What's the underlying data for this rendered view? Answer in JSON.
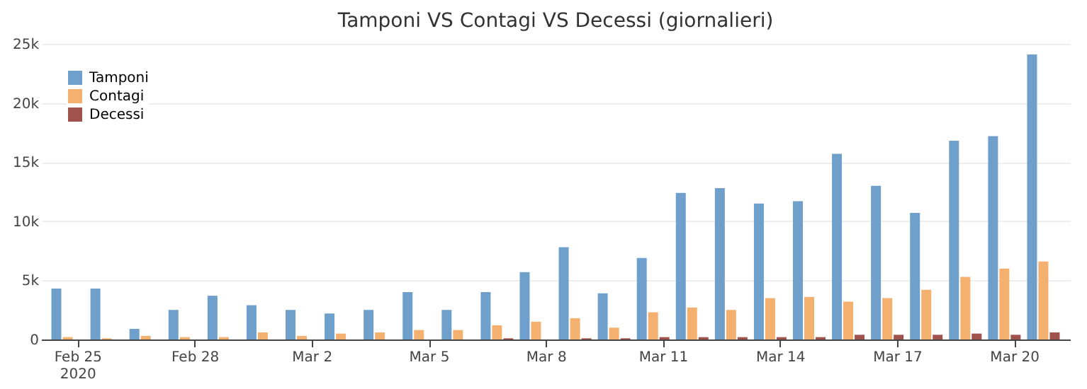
{
  "chart_data": {
    "type": "bar",
    "title": "Tamponi VS Contagi VS Decessi (giornalieri)",
    "x": [
      "2020-02-24T18:00",
      "2020-02-25T18:00",
      "2020-02-26T18:00",
      "2020-02-27T18:00",
      "2020-02-28T18:00",
      "2020-02-29T18:00",
      "2020-03-01T18:00",
      "2020-03-02T18:00",
      "2020-03-03T18:00",
      "2020-03-04T18:00",
      "2020-03-05T18:00",
      "2020-03-06T18:00",
      "2020-03-07T18:00",
      "2020-03-08T18:00",
      "2020-03-09T18:00",
      "2020-03-10T18:00",
      "2020-03-11T18:00",
      "2020-03-12T18:00",
      "2020-03-13T18:00",
      "2020-03-14T18:00",
      "2020-03-15T18:00",
      "2020-03-16T18:00",
      "2020-03-17T18:00",
      "2020-03-18T18:00",
      "2020-03-19T18:00",
      "2020-03-20T18:00"
    ],
    "series": [
      {
        "name": "Tamponi",
        "color": "#6f9fcb",
        "values": [
          4300,
          4300,
          900,
          2500,
          3700,
          2900,
          2500,
          2200,
          2500,
          4000,
          2500,
          4000,
          5700,
          7800,
          3900,
          6900,
          12400,
          12800,
          11500,
          11700,
          15700,
          13000,
          10700,
          16800,
          17200,
          24100
        ]
      },
      {
        "name": "Contagi",
        "color": "#f3b06f",
        "values": [
          200,
          100,
          300,
          200,
          200,
          600,
          300,
          500,
          600,
          800,
          800,
          1200,
          1500,
          1800,
          1000,
          2300,
          2700,
          2500,
          3500,
          3600,
          3200,
          3500,
          4200,
          5300,
          6000,
          6600
        ]
      },
      {
        "name": "Decessi",
        "color": "#a0524c",
        "values": [
          0,
          0,
          0,
          0,
          0,
          0,
          0,
          0,
          0,
          0,
          0,
          100,
          0,
          100,
          100,
          200,
          200,
          200,
          200,
          200,
          400,
          400,
          400,
          500,
          400,
          600
        ]
      }
    ],
    "xlim": [
      "2020-02-24T06:00",
      "2020-03-21T06:00"
    ],
    "xticks": [
      {
        "value": "2020-02-25",
        "label": "Feb 25\n2020"
      },
      {
        "value": "2020-02-28",
        "label": "Feb 28"
      },
      {
        "value": "2020-03-02",
        "label": "Mar 2"
      },
      {
        "value": "2020-03-05",
        "label": "Mar 5"
      },
      {
        "value": "2020-03-08",
        "label": "Mar 8"
      },
      {
        "value": "2020-03-11",
        "label": "Mar 11"
      },
      {
        "value": "2020-03-14",
        "label": "Mar 14"
      },
      {
        "value": "2020-03-17",
        "label": "Mar 17"
      },
      {
        "value": "2020-03-20",
        "label": "Mar 20"
      }
    ],
    "ylim": [
      0,
      25000
    ],
    "yticks": [
      0,
      {
        "value": 5000,
        "label": "5k"
      },
      {
        "value": 10000,
        "label": "10k"
      },
      {
        "value": 15000,
        "label": "15k"
      },
      {
        "value": 20000,
        "label": "20k"
      },
      {
        "value": 25000,
        "label": "25k"
      }
    ],
    "grid": "y",
    "legend": "top left"
  }
}
